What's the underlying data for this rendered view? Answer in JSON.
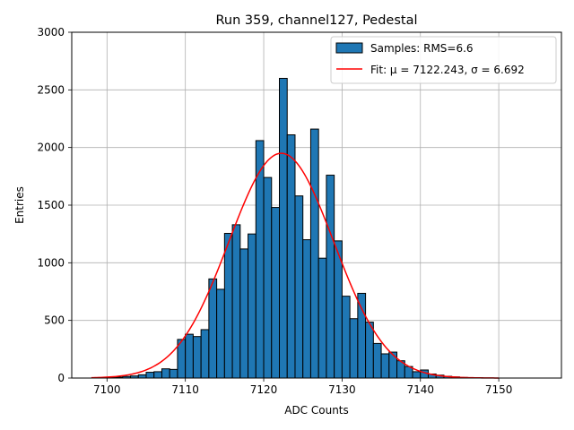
{
  "chart_data": {
    "type": "bar",
    "title": "Run 359, channel127, Pedestal",
    "xlabel": "ADC Counts",
    "ylabel": "Entries",
    "xlim": [
      7095.5,
      7158
    ],
    "ylim": [
      0,
      3000
    ],
    "xticks": [
      7100,
      7110,
      7120,
      7130,
      7140,
      7150
    ],
    "yticks": [
      0,
      500,
      1000,
      1500,
      2000,
      2500,
      3000
    ],
    "grid": true,
    "legend_position": "top-right",
    "bin_width": 1,
    "series": [
      {
        "name": "Samples: RMS=6.6",
        "kind": "histogram",
        "color": "#1f77b4",
        "edge_color": "#000000",
        "bins": [
          7099,
          7100,
          7101,
          7102,
          7103,
          7104,
          7105,
          7106,
          7107,
          7108,
          7109,
          7110,
          7111,
          7112,
          7113,
          7114,
          7115,
          7116,
          7117,
          7118,
          7119,
          7120,
          7121,
          7122,
          7123,
          7124,
          7125,
          7126,
          7127,
          7128,
          7129,
          7130,
          7131,
          7132,
          7133,
          7134,
          7135,
          7136,
          7137,
          7138,
          7139,
          7140,
          7141,
          7142,
          7143,
          7144,
          7145,
          7146,
          7147
        ],
        "values": [
          3,
          5,
          8,
          14,
          18,
          28,
          50,
          55,
          80,
          75,
          335,
          380,
          360,
          420,
          860,
          770,
          1255,
          1330,
          1120,
          1250,
          2060,
          1740,
          1480,
          2600,
          2110,
          1580,
          1200,
          2160,
          1040,
          1760,
          1190,
          710,
          515,
          735,
          485,
          300,
          210,
          225,
          150,
          100,
          55,
          70,
          35,
          25,
          15,
          10,
          5,
          3,
          2
        ]
      },
      {
        "name": "Fit: μ = 7122.243, σ = 6.692",
        "kind": "gaussian",
        "color": "#ff0000",
        "mu": 7122.243,
        "sigma": 6.692,
        "amplitude": 1950,
        "x_range": [
          7098,
          7150
        ]
      }
    ]
  }
}
